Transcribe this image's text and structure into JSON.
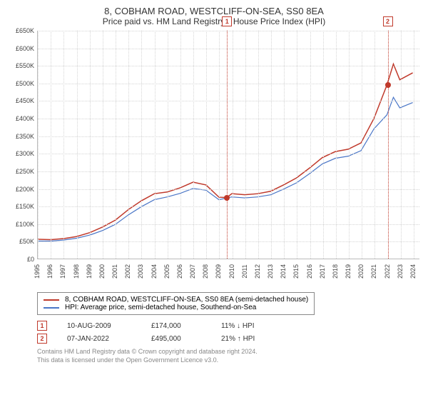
{
  "title": "8, COBHAM ROAD, WESTCLIFF-ON-SEA, SS0 8EA",
  "subtitle": "Price paid vs. HM Land Registry's House Price Index (HPI)",
  "chart": {
    "type": "line",
    "ylim": [
      0,
      650000
    ],
    "ytick_step": 50000,
    "ytick_labels": [
      "£0",
      "£50K",
      "£100K",
      "£150K",
      "£200K",
      "£250K",
      "£300K",
      "£350K",
      "£400K",
      "£450K",
      "£500K",
      "£550K",
      "£600K",
      "£650K"
    ],
    "xlim": [
      1995,
      2024.5
    ],
    "xtick_step": 1,
    "xtick_labels": [
      "1995",
      "1996",
      "1997",
      "1998",
      "1999",
      "2000",
      "2001",
      "2002",
      "2003",
      "2004",
      "2005",
      "2006",
      "2007",
      "2008",
      "2009",
      "2010",
      "2011",
      "2012",
      "2013",
      "2014",
      "2015",
      "2016",
      "2017",
      "2018",
      "2019",
      "2020",
      "2021",
      "2022",
      "2023",
      "2024"
    ],
    "grid_color": "#d5d5d5",
    "background_color": "#ffffff",
    "series": [
      {
        "name": "property",
        "color": "#c0392b",
        "width": 1.5,
        "points": [
          [
            1995,
            55000
          ],
          [
            1996,
            54000
          ],
          [
            1997,
            57000
          ],
          [
            1998,
            63000
          ],
          [
            1999,
            74000
          ],
          [
            2000,
            90000
          ],
          [
            2001,
            110000
          ],
          [
            2002,
            140000
          ],
          [
            2003,
            165000
          ],
          [
            2004,
            185000
          ],
          [
            2005,
            190000
          ],
          [
            2006,
            202000
          ],
          [
            2007,
            218000
          ],
          [
            2008,
            210000
          ],
          [
            2009,
            175000
          ],
          [
            2009.6,
            174000
          ],
          [
            2010,
            185000
          ],
          [
            2011,
            182000
          ],
          [
            2012,
            185000
          ],
          [
            2013,
            192000
          ],
          [
            2014,
            210000
          ],
          [
            2015,
            230000
          ],
          [
            2016,
            258000
          ],
          [
            2017,
            288000
          ],
          [
            2018,
            305000
          ],
          [
            2019,
            312000
          ],
          [
            2020,
            330000
          ],
          [
            2021,
            400000
          ],
          [
            2022,
            495000
          ],
          [
            2022.5,
            555000
          ],
          [
            2023,
            510000
          ],
          [
            2024,
            530000
          ]
        ]
      },
      {
        "name": "hpi",
        "color": "#4a76c7",
        "width": 1.2,
        "points": [
          [
            1995,
            50000
          ],
          [
            1996,
            50000
          ],
          [
            1997,
            53000
          ],
          [
            1998,
            58000
          ],
          [
            1999,
            67000
          ],
          [
            2000,
            80000
          ],
          [
            2001,
            98000
          ],
          [
            2002,
            125000
          ],
          [
            2003,
            148000
          ],
          [
            2004,
            168000
          ],
          [
            2005,
            176000
          ],
          [
            2006,
            186000
          ],
          [
            2007,
            200000
          ],
          [
            2008,
            195000
          ],
          [
            2009,
            168000
          ],
          [
            2010,
            176000
          ],
          [
            2011,
            173000
          ],
          [
            2012,
            176000
          ],
          [
            2013,
            182000
          ],
          [
            2014,
            198000
          ],
          [
            2015,
            216000
          ],
          [
            2016,
            242000
          ],
          [
            2017,
            270000
          ],
          [
            2018,
            286000
          ],
          [
            2019,
            292000
          ],
          [
            2020,
            308000
          ],
          [
            2021,
            370000
          ],
          [
            2022,
            410000
          ],
          [
            2022.5,
            460000
          ],
          [
            2023,
            430000
          ],
          [
            2024,
            445000
          ]
        ]
      }
    ],
    "markers": [
      {
        "id": "1",
        "x": 2009.6,
        "y": 174000,
        "color": "#c0392b"
      },
      {
        "id": "2",
        "x": 2022.0,
        "y": 495000,
        "color": "#c0392b"
      }
    ]
  },
  "legend": {
    "items": [
      {
        "color": "#c0392b",
        "label": "8, COBHAM ROAD, WESTCLIFF-ON-SEA, SS0 8EA (semi-detached house)"
      },
      {
        "color": "#4a76c7",
        "label": "HPI: Average price, semi-detached house, Southend-on-Sea"
      }
    ]
  },
  "transactions": [
    {
      "id": "1",
      "date": "10-AUG-2009",
      "price": "£174,000",
      "pct": "11% ↓ HPI"
    },
    {
      "id": "2",
      "date": "07-JAN-2022",
      "price": "£495,000",
      "pct": "21% ↑ HPI"
    }
  ],
  "footer": {
    "line1": "Contains HM Land Registry data © Crown copyright and database right 2024.",
    "line2": "This data is licensed under the Open Government Licence v3.0."
  }
}
